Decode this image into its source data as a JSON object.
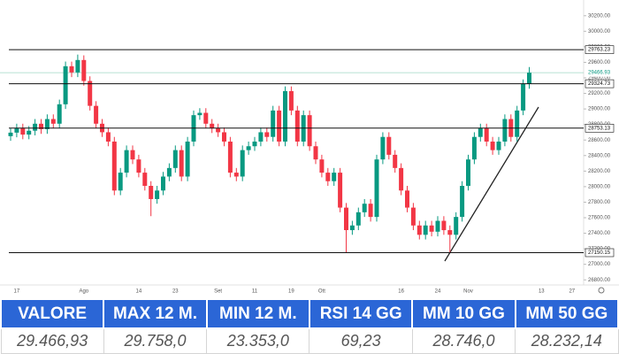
{
  "chart_data": {
    "type": "candlestick",
    "categories": [
      null,
      "17",
      null,
      null,
      null,
      null,
      null,
      null,
      null,
      null,
      null,
      null,
      "Ago",
      null,
      null,
      null,
      null,
      null,
      null,
      null,
      null,
      "14",
      null,
      null,
      null,
      null,
      null,
      "23",
      null,
      null,
      null,
      null,
      null,
      null,
      "Set",
      null,
      null,
      null,
      null,
      null,
      "11",
      null,
      null,
      null,
      null,
      null,
      "19",
      null,
      null,
      null,
      null,
      "Ott",
      null,
      null,
      null,
      null,
      null,
      null,
      null,
      null,
      null,
      null,
      null,
      null,
      "16",
      null,
      null,
      null,
      null,
      null,
      "24",
      null,
      null,
      null,
      null,
      "Nov",
      null,
      null,
      null,
      null,
      null,
      null,
      null,
      null,
      null,
      null,
      null,
      "13",
      null,
      null,
      null,
      null,
      "27"
    ],
    "open": [
      28650,
      28695,
      28750,
      28670,
      28720,
      28810,
      28740,
      28870,
      28810,
      29060,
      29550,
      29470,
      29630,
      29360,
      29040,
      28810,
      28700,
      28580,
      27950,
      28180,
      28470,
      28350,
      28180,
      28010,
      27840,
      27950,
      28130,
      28240,
      28470,
      28130,
      28580,
      28920,
      28950,
      28810,
      28750,
      28700,
      28580,
      28180,
      28130,
      28470,
      28520,
      28580,
      28700,
      28640,
      28980,
      28580,
      29230,
      28980,
      28580,
      28920,
      28520,
      28350,
      28180,
      28070,
      28180,
      27730,
      27440,
      27500,
      27670,
      27780,
      27610,
      28350,
      28640,
      28410,
      28240,
      27950,
      27730,
      27500,
      27380,
      27500,
      27420,
      27560,
      27440,
      27380,
      27610,
      28010,
      28350,
      28640,
      28750,
      28580,
      28470,
      28580,
      28870,
      28640,
      28980,
      29320,
      null,
      null,
      null,
      null,
      null,
      null,
      null
    ],
    "high": [
      28755,
      28810,
      28810,
      28780,
      28870,
      28870,
      28930,
      28930,
      29120,
      29610,
      29610,
      29700,
      29690,
      29420,
      29100,
      28870,
      28760,
      28640,
      28240,
      28530,
      28530,
      28410,
      28240,
      28070,
      28010,
      28190,
      28300,
      28530,
      28530,
      28640,
      28980,
      29010,
      29010,
      28870,
      28810,
      28760,
      28640,
      28240,
      28530,
      28580,
      28640,
      28760,
      28760,
      29040,
      29040,
      29290,
      29290,
      29040,
      28980,
      28980,
      28580,
      28410,
      28240,
      28240,
      28240,
      27790,
      27560,
      27730,
      27840,
      27840,
      28410,
      28700,
      28700,
      28470,
      28300,
      28010,
      27790,
      27560,
      27560,
      27560,
      27620,
      27620,
      27500,
      27670,
      28070,
      28410,
      28700,
      28810,
      28810,
      28640,
      28640,
      28930,
      28930,
      29040,
      29380,
      29540,
      null,
      null,
      null,
      null,
      null,
      null,
      null
    ],
    "low": [
      28590,
      28635,
      28610,
      28610,
      28660,
      28680,
      28680,
      28750,
      28750,
      29000,
      29410,
      29410,
      29300,
      28980,
      28750,
      28640,
      28520,
      27890,
      27890,
      28120,
      28290,
      28120,
      27950,
      27620,
      27780,
      27890,
      28070,
      28180,
      28070,
      28070,
      28520,
      28860,
      28750,
      28690,
      28640,
      28520,
      28120,
      28070,
      28070,
      28410,
      28460,
      28520,
      28580,
      28580,
      28520,
      28520,
      28920,
      28520,
      28520,
      28460,
      28290,
      28120,
      28010,
      28010,
      27670,
      27150,
      27380,
      27440,
      27610,
      27550,
      27550,
      28290,
      28350,
      28180,
      27890,
      27670,
      27440,
      27320,
      27320,
      27360,
      27360,
      27380,
      27150,
      27320,
      27550,
      27950,
      28290,
      28580,
      28520,
      28410,
      28410,
      28520,
      28580,
      28580,
      28920,
      29260,
      null,
      null,
      null,
      null,
      null,
      null,
      null
    ],
    "close": [
      28695,
      28750,
      28670,
      28720,
      28810,
      28740,
      28870,
      28810,
      29060,
      29550,
      29470,
      29630,
      29360,
      29040,
      28810,
      28700,
      28580,
      27950,
      28180,
      28470,
      28350,
      28180,
      28010,
      27840,
      27950,
      28130,
      28240,
      28470,
      28130,
      28580,
      28920,
      28950,
      28810,
      28750,
      28700,
      28580,
      28180,
      28130,
      28470,
      28520,
      28580,
      28700,
      28640,
      28980,
      28580,
      29230,
      28980,
      28580,
      28920,
      28520,
      28350,
      28180,
      28070,
      28180,
      27730,
      27440,
      27500,
      27670,
      27780,
      27610,
      28350,
      28640,
      28410,
      28240,
      27950,
      27730,
      27500,
      27380,
      27500,
      27420,
      27560,
      27440,
      27380,
      27610,
      28010,
      28350,
      28640,
      28750,
      28580,
      28470,
      28580,
      28870,
      28640,
      28980,
      29320,
      29466.93,
      null,
      null,
      null,
      null,
      null,
      null,
      null
    ],
    "up_color": "#089981",
    "down_color": "#f23645",
    "ylim": [
      26700,
      30300
    ],
    "yticks": [
      {
        "value": 26800,
        "label": "26800.00"
      },
      {
        "value": 27000,
        "label": "27000.00"
      },
      {
        "value": 27200,
        "label": "27200.00"
      },
      {
        "value": 27400,
        "label": "27400.00"
      },
      {
        "value": 27600,
        "label": "27600.00"
      },
      {
        "value": 27800,
        "label": "27800.00"
      },
      {
        "value": 28000,
        "label": "28000.00"
      },
      {
        "value": 28200,
        "label": "28200.00"
      },
      {
        "value": 28400,
        "label": "28400.00"
      },
      {
        "value": 28600,
        "label": "28600.00"
      },
      {
        "value": 28800,
        "label": "28800.00"
      },
      {
        "value": 29000,
        "label": "29000.00"
      },
      {
        "value": 29200,
        "label": "29200.00"
      },
      {
        "value": 29400,
        "label": "29400.00"
      },
      {
        "value": 29600,
        "label": "29600.00"
      },
      {
        "value": 29800,
        "label": "29800.00"
      },
      {
        "value": 30000,
        "label": "30000.00"
      },
      {
        "value": 30200,
        "label": "30200.00"
      }
    ],
    "levels": [
      {
        "value": 29763.23,
        "label": "29763.23"
      },
      {
        "value": 29324.73,
        "label": "29324.73"
      },
      {
        "value": 28753.13,
        "label": "28753.13"
      },
      {
        "value": 27150.15,
        "label": "27150.15"
      }
    ],
    "last_price": {
      "value": 29466.93,
      "label": "29466.93"
    }
  },
  "table": {
    "header": [
      "VALORE",
      "MAX 12 M.",
      "MIN 12 M.",
      "RSI 14 GG",
      "MM 10 GG",
      "MM 50 GG"
    ],
    "rows": [
      [
        "29.466,93",
        "29.758,0",
        "23.353,0",
        "69,23",
        "28.746,0",
        "28.232,14"
      ]
    ]
  }
}
